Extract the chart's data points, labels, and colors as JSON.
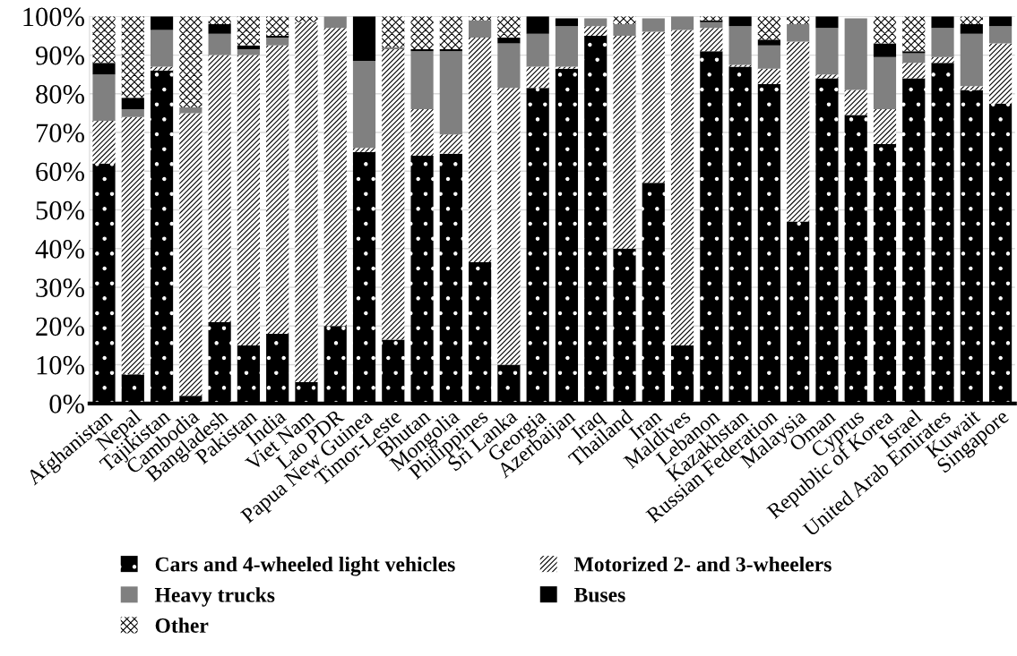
{
  "chart_data": {
    "type": "bar",
    "stacked": true,
    "categories": [
      "Afghanistan",
      "Nepal",
      "Tajikistan",
      "Cambodia",
      "Bangladesh",
      "Pakistan",
      "India",
      "Viet Nam",
      "Lao PDR",
      "Papua New Guinea",
      "Timor-Leste",
      "Bhutan",
      "Mongolia",
      "Philippines",
      "Sri Lanka",
      "Georgia",
      "Azerbaijan",
      "Iraq",
      "Thailand",
      "Iran",
      "Maldives",
      "Lebanon",
      "Kazakhstan",
      "Russian Federation",
      "Malaysia",
      "Oman",
      "Cyprus",
      "Republic of Korea",
      "Israel",
      "United Arab Emirates",
      "Kuwait",
      "Singapore"
    ],
    "series": [
      {
        "name": "Cars and 4-wheeled light vehicles",
        "color": "#000000",
        "values": [
          62,
          7.5,
          86,
          2,
          21,
          15,
          18,
          5.5,
          20,
          65,
          16.5,
          64,
          64.5,
          36.5,
          10,
          81.5,
          86.5,
          95,
          40,
          57,
          15,
          91,
          87,
          82.5,
          47,
          84,
          74.5,
          67,
          84,
          88,
          81,
          77.5
        ]
      },
      {
        "name": "Motorized 2- and 3-wheelers",
        "color": "#000000",
        "values": [
          11,
          66.5,
          1,
          73,
          69,
          75,
          74.5,
          93,
          77,
          1,
          75,
          12,
          5,
          58,
          71.5,
          5.5,
          0.5,
          2.5,
          55,
          39,
          81.5,
          6,
          0.5,
          4,
          46.5,
          1,
          6.5,
          9,
          4,
          1.5,
          1,
          15.5
        ]
      },
      {
        "name": "Heavy trucks",
        "color": "#808080",
        "values": [
          12,
          2,
          9.5,
          1.5,
          5.5,
          1.5,
          2,
          0,
          3,
          22.5,
          0.5,
          15,
          21.5,
          4.5,
          11.5,
          8.5,
          10.5,
          2,
          3,
          3.5,
          3.5,
          1.5,
          10,
          6,
          4.5,
          12,
          18.5,
          13.5,
          2.5,
          7.5,
          13.5,
          4.5
        ]
      },
      {
        "name": "Buses",
        "color": "#000000",
        "values": [
          3,
          3,
          3.5,
          0,
          2.5,
          1,
          0.5,
          0,
          0,
          11.5,
          0,
          0.5,
          0.5,
          0,
          1.5,
          4.5,
          2,
          null,
          0,
          null,
          0,
          0.5,
          2.5,
          1.5,
          0,
          3,
          null,
          3.5,
          0.5,
          3,
          2.5,
          2.5
        ]
      },
      {
        "name": "Other",
        "color": "#000000",
        "values": [
          12,
          21,
          0,
          23.5,
          2,
          7.5,
          5,
          1.5,
          0,
          0,
          8,
          8.5,
          8.5,
          1,
          5.5,
          0,
          null,
          0,
          2,
          0,
          0,
          1,
          0,
          6,
          2,
          0,
          0,
          7,
          9,
          0,
          2,
          0
        ]
      }
    ],
    "ylim": [
      0,
      100
    ],
    "yticks": [
      {
        "value": 0,
        "label": "0%"
      },
      {
        "value": 10,
        "label": "10%"
      },
      {
        "value": 20,
        "label": "20%"
      },
      {
        "value": 30,
        "label": "30%"
      },
      {
        "value": 40,
        "label": "40%"
      },
      {
        "value": 50,
        "label": "50%"
      },
      {
        "value": 60,
        "label": "60%"
      },
      {
        "value": 70,
        "label": "70%"
      },
      {
        "value": 80,
        "label": "80%"
      },
      {
        "value": 90,
        "label": "90%"
      },
      {
        "value": 100,
        "label": "100%"
      }
    ],
    "grid": "y",
    "legend": "bottom"
  }
}
